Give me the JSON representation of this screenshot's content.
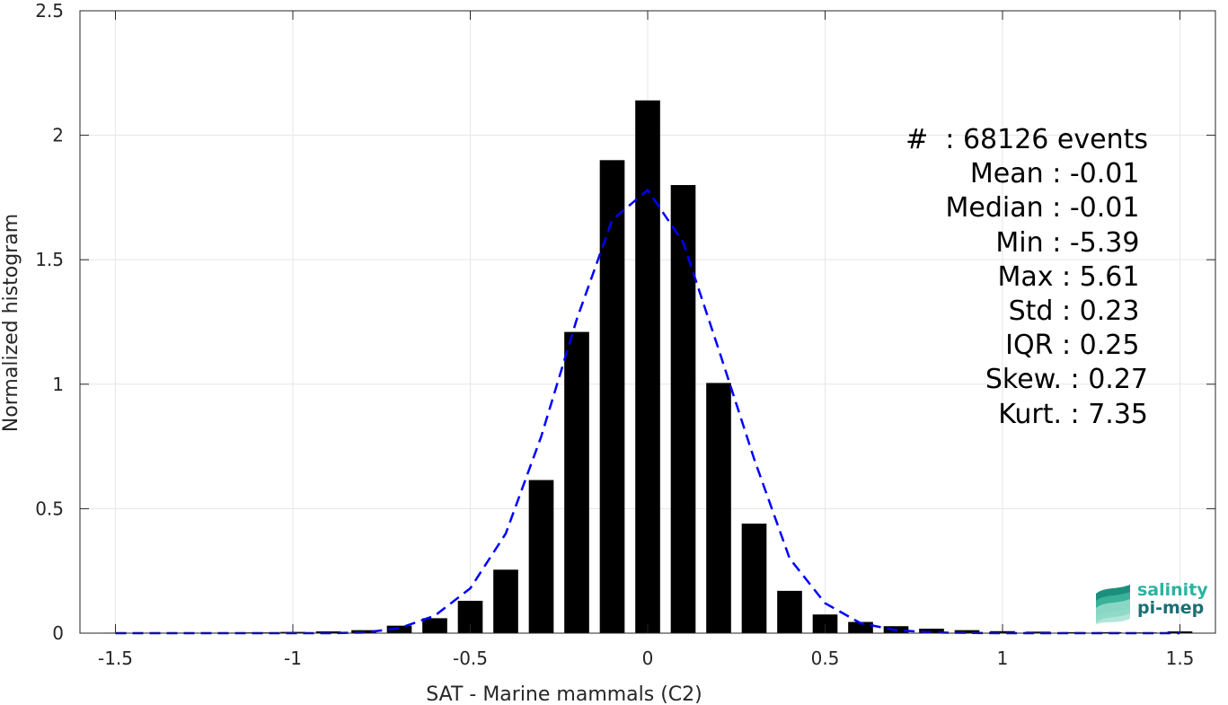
{
  "chart_data": {
    "type": "bar",
    "xlabel": "SAT - Marine mammals (C2)",
    "ylabel": "Normalized histogram",
    "xlim": [
      -1.6,
      1.6
    ],
    "ylim": [
      0,
      2.5
    ],
    "x_ticks": [
      -1.5,
      -1,
      -0.5,
      0,
      0.5,
      1,
      1.5
    ],
    "x_tick_labels": [
      "-1.5",
      "-1",
      "-0.5",
      "0",
      "0.5",
      "1",
      "1.5"
    ],
    "y_ticks": [
      0,
      0.5,
      1,
      1.5,
      2,
      2.5
    ],
    "y_tick_labels": [
      "0",
      "0.5",
      "1",
      "1.5",
      "2",
      "2.5"
    ],
    "grid": true,
    "bar_width": 0.07,
    "bars": {
      "x": [
        -1.5,
        -1.4,
        -1.3,
        -1.2,
        -1.1,
        -1.0,
        -0.9,
        -0.8,
        -0.7,
        -0.6,
        -0.5,
        -0.4,
        -0.3,
        -0.2,
        -0.1,
        0.0,
        0.1,
        0.2,
        0.3,
        0.4,
        0.5,
        0.6,
        0.7,
        0.8,
        0.9,
        1.0,
        1.1,
        1.2,
        1.3,
        1.4,
        1.5
      ],
      "values": [
        0.002,
        0.002,
        0.002,
        0.002,
        0.003,
        0.005,
        0.007,
        0.012,
        0.03,
        0.06,
        0.13,
        0.255,
        0.615,
        1.21,
        1.9,
        2.14,
        1.8,
        1.005,
        0.44,
        0.17,
        0.075,
        0.045,
        0.028,
        0.018,
        0.012,
        0.008,
        0.006,
        0.004,
        0.004,
        0.003,
        0.007
      ]
    },
    "fit_line": {
      "style": "dashed",
      "color": "#0000ff",
      "x": [
        -1.5,
        -1.4,
        -1.3,
        -1.2,
        -1.1,
        -1.0,
        -0.9,
        -0.8,
        -0.7,
        -0.6,
        -0.5,
        -0.4,
        -0.3,
        -0.2,
        -0.1,
        0.0,
        0.1,
        0.2,
        0.3,
        0.4,
        0.5,
        0.6,
        0.7,
        0.8,
        0.9,
        1.0,
        1.1,
        1.2,
        1.3,
        1.4,
        1.5
      ],
      "values": [
        0.0,
        0.0,
        0.0,
        0.0,
        0.0,
        0.0,
        0.0,
        0.002,
        0.02,
        0.07,
        0.18,
        0.4,
        0.79,
        1.26,
        1.66,
        1.78,
        1.57,
        1.14,
        0.7,
        0.3,
        0.12,
        0.04,
        0.012,
        0.003,
        0.001,
        0.0,
        0.0,
        0.0,
        0.0,
        0.0,
        0.0
      ]
    },
    "stats_lines": [
      "#  : 68126 events",
      "Mean : -0.01 ",
      "Median : -0.01 ",
      "Min : -5.39 ",
      "Max : 5.61 ",
      "Std : 0.23 ",
      "IQR : 0.25 ",
      "Skew. : 0.27",
      "Kurt. : 7.35"
    ],
    "colors": {
      "bars": "#000000",
      "fit_line": "#0000ff",
      "grid": "#e6e6e6",
      "axes": "#262626"
    }
  },
  "logo": {
    "line1": "salinity",
    "line2": "pi-mep"
  }
}
